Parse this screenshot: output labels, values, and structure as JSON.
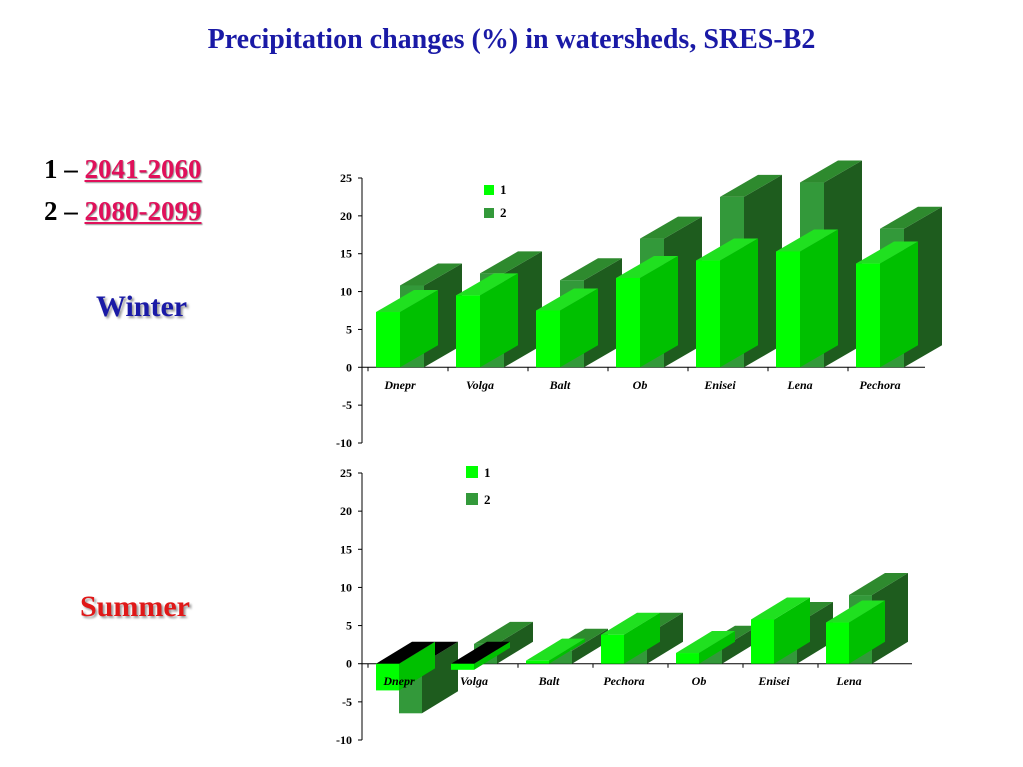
{
  "title": "Precipitation changes (%) in watersheds, SRES-B2",
  "legend_periods": [
    {
      "prefix": "1 – ",
      "years": "2041-2060"
    },
    {
      "prefix": "2 – ",
      "years": "2080-2099"
    }
  ],
  "seasons": {
    "winter": "Winter",
    "summer": "Summer"
  },
  "colors": {
    "series1_front": "#00ff00",
    "series1_side": "#00c000",
    "series1_top": "#20e020",
    "series2_front": "#33993a",
    "series2_side": "#1e5c1e",
    "series2_top": "#2e8a2e"
  },
  "chart_data": [
    {
      "type": "bar",
      "name": "winter",
      "categories": [
        "Dnepr",
        "Volga",
        "Balt",
        "Ob",
        "Enisei",
        "Lena",
        "Pechora"
      ],
      "series": [
        {
          "name": "1",
          "values": [
            7.3,
            9.5,
            7.5,
            11.8,
            14.1,
            15.3,
            13.7
          ]
        },
        {
          "name": "2",
          "values": [
            10.8,
            12.4,
            11.5,
            17.0,
            22.5,
            24.4,
            18.3
          ]
        }
      ],
      "ylim": [
        -10,
        25
      ],
      "yticks": [
        "25",
        "20",
        "15",
        "10",
        "5",
        "0",
        "-5",
        "-10"
      ],
      "legend_placement": "top-center"
    },
    {
      "type": "bar",
      "name": "summer",
      "categories": [
        "Dnepr",
        "Volga",
        "Balt",
        "Pechora",
        "Ob",
        "Enisei",
        "Lena"
      ],
      "series": [
        {
          "name": "1",
          "values": [
            -3.5,
            -0.8,
            0.4,
            3.8,
            1.4,
            5.8,
            5.4
          ]
        },
        {
          "name": "2",
          "values": [
            -6.5,
            2.6,
            1.7,
            3.8,
            2.1,
            5.2,
            9.0
          ]
        }
      ],
      "ylim": [
        -10,
        25
      ],
      "yticks": [
        "25",
        "20",
        "15",
        "10",
        "5",
        "0",
        "-5",
        "-10"
      ],
      "legend_placement": "top-center"
    }
  ]
}
